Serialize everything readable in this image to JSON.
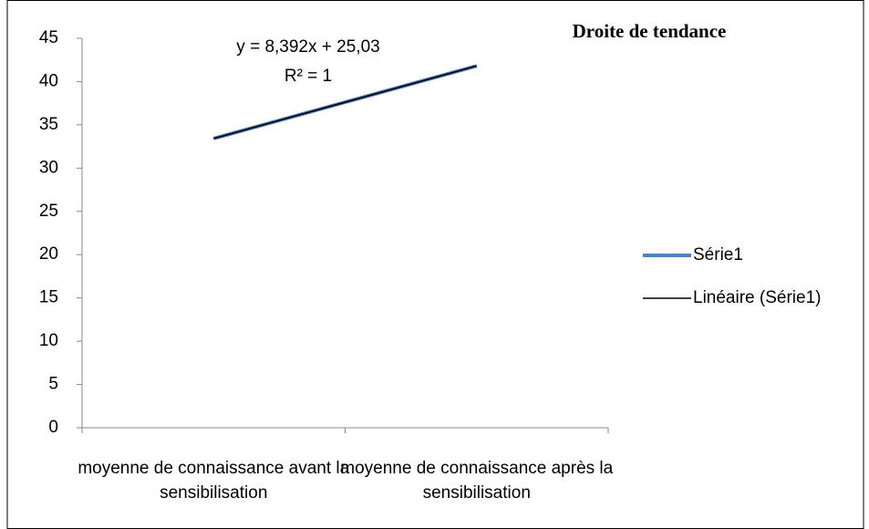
{
  "chart_data": {
    "type": "line",
    "title": "Droite de tendance",
    "categories": [
      "moyenne de connaissance avant la sensibilisation",
      "moyenne de connaissance après la sensibilisation"
    ],
    "series": [
      {
        "name": "Série1",
        "color": "#4f81bd",
        "values": [
          33.42,
          41.81
        ]
      },
      {
        "name": "Linéaire (Série1)",
        "color": "#000000",
        "values": [
          33.42,
          41.81
        ]
      }
    ],
    "annotations": [
      "y = 8,392x + 25,03",
      "R² = 1"
    ],
    "ylim": [
      0,
      45
    ],
    "yticks": [
      0,
      5,
      10,
      15,
      20,
      25,
      30,
      35,
      40,
      45
    ],
    "grid": false,
    "legend": "right"
  }
}
